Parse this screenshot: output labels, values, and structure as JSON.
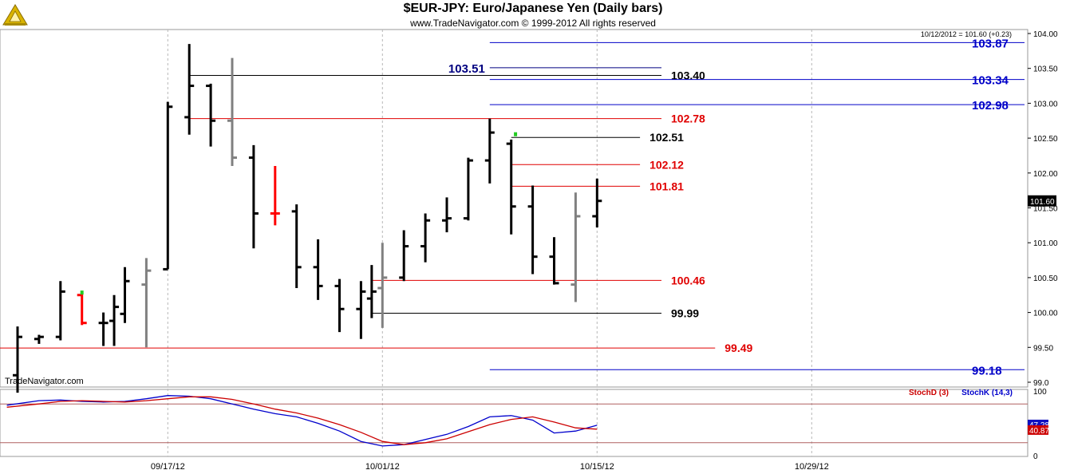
{
  "header": {
    "title": "$EUR-JPY:  Euro/Japanese Yen  (Daily bars)",
    "copyright": "www.TradeNavigator.com © 1999-2012 All rights reserved",
    "logo_icon": "trade-navigator-logo-icon"
  },
  "chart_data": {
    "type": "ohlc",
    "watermark": "TradeNavigator.com",
    "last_quote": "10/12/2012 = 101.60 (+0.23)",
    "last_price_label": "101.60",
    "x_ticks": [
      {
        "i": 7,
        "label": "09/17/12"
      },
      {
        "i": 17,
        "label": "10/01/12"
      },
      {
        "i": 27,
        "label": "10/15/12"
      },
      {
        "i": 37,
        "label": "10/29/12"
      }
    ],
    "y_ticks": [
      "99.0",
      "99.50",
      "100.00",
      "100.50",
      "101.00",
      "101.50",
      "102.00",
      "102.50",
      "103.00",
      "103.50",
      "104.00"
    ],
    "ylim": [
      99.0,
      104.0
    ],
    "bars": [
      {
        "i": 0,
        "o": 99.1,
        "h": 99.8,
        "l": 98.85,
        "c": 99.65,
        "color": "#000000"
      },
      {
        "i": 1,
        "o": 99.62,
        "h": 99.68,
        "l": 99.55,
        "c": 99.65,
        "color": "#000000"
      },
      {
        "i": 2,
        "o": 99.65,
        "h": 100.45,
        "l": 99.6,
        "c": 100.3,
        "color": "#000000"
      },
      {
        "i": 3,
        "o": 100.25,
        "h": 100.28,
        "l": 99.82,
        "c": 99.85,
        "color": "#ff0000"
      },
      {
        "i": 4,
        "o": 99.85,
        "h": 100.0,
        "l": 99.52,
        "c": 99.85,
        "color": "#000000"
      },
      {
        "i": 4.5,
        "o": 99.88,
        "h": 100.25,
        "l": 99.52,
        "c": 100.08,
        "color": "#000000"
      },
      {
        "i": 5,
        "o": 99.98,
        "h": 100.65,
        "l": 99.85,
        "c": 100.45,
        "color": "#000000"
      },
      {
        "i": 6,
        "o": 100.4,
        "h": 100.78,
        "l": 99.5,
        "c": 100.6,
        "color": "#808080"
      },
      {
        "i": 7,
        "o": 100.62,
        "h": 103.02,
        "l": 100.62,
        "c": 102.95,
        "color": "#000000"
      },
      {
        "i": 8,
        "o": 102.8,
        "h": 103.85,
        "l": 102.55,
        "c": 103.25,
        "color": "#000000"
      },
      {
        "i": 9,
        "o": 103.25,
        "h": 103.28,
        "l": 102.38,
        "c": 102.75,
        "color": "#000000"
      },
      {
        "i": 10,
        "o": 102.75,
        "h": 103.65,
        "l": 102.1,
        "c": 102.22,
        "color": "#808080"
      },
      {
        "i": 11,
        "o": 102.22,
        "h": 102.4,
        "l": 100.92,
        "c": 101.42,
        "color": "#000000"
      },
      {
        "i": 12,
        "o": 101.42,
        "h": 102.1,
        "l": 101.25,
        "c": 101.42,
        "color": "#ff0000"
      },
      {
        "i": 13,
        "o": 101.45,
        "h": 101.55,
        "l": 100.35,
        "c": 100.65,
        "color": "#000000"
      },
      {
        "i": 14,
        "o": 100.65,
        "h": 101.05,
        "l": 100.18,
        "c": 100.38,
        "color": "#000000"
      },
      {
        "i": 15,
        "o": 100.38,
        "h": 100.48,
        "l": 99.72,
        "c": 100.05,
        "color": "#000000"
      },
      {
        "i": 16,
        "o": 100.05,
        "h": 100.45,
        "l": 99.62,
        "c": 100.3,
        "color": "#000000"
      },
      {
        "i": 16.5,
        "o": 100.2,
        "h": 100.68,
        "l": 99.92,
        "c": 100.3,
        "color": "#000000"
      },
      {
        "i": 17,
        "o": 100.35,
        "h": 101.0,
        "l": 99.78,
        "c": 100.5,
        "color": "#808080"
      },
      {
        "i": 18,
        "o": 100.5,
        "h": 101.18,
        "l": 100.45,
        "c": 100.95,
        "color": "#000000"
      },
      {
        "i": 19,
        "o": 100.95,
        "h": 101.42,
        "l": 100.72,
        "c": 101.32,
        "color": "#000000"
      },
      {
        "i": 20,
        "o": 101.32,
        "h": 101.65,
        "l": 101.15,
        "c": 101.35,
        "color": "#000000"
      },
      {
        "i": 21,
        "o": 101.35,
        "h": 102.22,
        "l": 101.32,
        "c": 102.18,
        "color": "#000000"
      },
      {
        "i": 22,
        "o": 102.18,
        "h": 102.78,
        "l": 101.85,
        "c": 102.58,
        "color": "#000000"
      },
      {
        "i": 23,
        "o": 102.42,
        "h": 102.48,
        "l": 101.12,
        "c": 101.52,
        "color": "#000000"
      },
      {
        "i": 24,
        "o": 101.52,
        "h": 101.82,
        "l": 100.55,
        "c": 100.8,
        "color": "#000000"
      },
      {
        "i": 25,
        "o": 100.8,
        "h": 101.08,
        "l": 100.4,
        "c": 100.42,
        "color": "#000000"
      },
      {
        "i": 26,
        "o": 100.4,
        "h": 101.72,
        "l": 100.15,
        "c": 101.38,
        "color": "#808080"
      },
      {
        "i": 27,
        "o": 101.38,
        "h": 101.92,
        "l": 101.22,
        "c": 101.6,
        "color": "#000000"
      }
    ],
    "green_dots": [
      {
        "i": 3,
        "v": 100.28
      },
      {
        "i": 23.2,
        "v": 102.55
      }
    ],
    "levels": [
      {
        "value": 103.87,
        "label": "103.87",
        "color": "#0000c8",
        "from": 22.0,
        "to": 47.0,
        "label_pos": "right"
      },
      {
        "value": 103.51,
        "label": "103.51",
        "color": "#000080",
        "from": 22.0,
        "to": 30.0,
        "label_pos": "left"
      },
      {
        "value": 103.4,
        "label": "103.40",
        "color": "#000000",
        "from": 8.0,
        "to": 30.0,
        "label_pos": "right-end"
      },
      {
        "value": 103.34,
        "label": "103.34",
        "color": "#0000c8",
        "from": 22.0,
        "to": 47.0,
        "label_pos": "right"
      },
      {
        "value": 102.98,
        "label": "102.98",
        "color": "#0000c8",
        "from": 22.0,
        "to": 47.0,
        "label_pos": "right"
      },
      {
        "value": 102.78,
        "label": "102.78",
        "color": "#e00000",
        "from": 8.0,
        "to": 30.0,
        "label_pos": "right-end"
      },
      {
        "value": 102.51,
        "label": "102.51",
        "color": "#000000",
        "from": 23.0,
        "to": 29.0,
        "label_pos": "right-end"
      },
      {
        "value": 102.12,
        "label": "102.12",
        "color": "#e00000",
        "from": 23.0,
        "to": 29.0,
        "label_pos": "right-end"
      },
      {
        "value": 101.81,
        "label": "101.81",
        "color": "#e00000",
        "from": 23.0,
        "to": 29.0,
        "label_pos": "right-end"
      },
      {
        "value": 100.46,
        "label": "100.46",
        "color": "#e00000",
        "from": 16.5,
        "to": 30.0,
        "label_pos": "right-end"
      },
      {
        "value": 99.99,
        "label": "99.99",
        "color": "#000000",
        "from": 16.5,
        "to": 30.0,
        "label_pos": "right-end"
      },
      {
        "value": 99.49,
        "label": "99.49",
        "color": "#e00000",
        "from": -1.0,
        "to": 32.5,
        "label_pos": "right-end"
      },
      {
        "value": 99.18,
        "label": "99.18",
        "color": "#0000c8",
        "from": 22.0,
        "to": 47.0,
        "label_pos": "right"
      }
    ],
    "indicator": {
      "legend": [
        {
          "name": "StochD (3)",
          "color": "#cc0000"
        },
        {
          "name": "StochK (14,3)",
          "color": "#0000cc"
        }
      ],
      "y_ticks": [
        "0",
        "100"
      ],
      "ylim": [
        0,
        100
      ],
      "ref_lines": [
        80,
        20
      ],
      "last_k_label": "47.28",
      "last_d_label": "40.87",
      "series": [
        {
          "name": "StochK (14,3)",
          "color": "#0000cc",
          "x": [
            -0.5,
            1,
            2,
            3,
            4,
            5,
            6,
            7,
            8,
            9,
            10,
            11,
            12,
            13,
            14,
            15,
            16,
            17,
            18,
            19,
            20,
            21,
            22,
            23,
            24,
            25,
            26,
            27
          ],
          "values": [
            78,
            85,
            86,
            84,
            83,
            84,
            88,
            93,
            92,
            88,
            80,
            72,
            65,
            60,
            50,
            38,
            22,
            15,
            17,
            25,
            33,
            45,
            60,
            62,
            55,
            35,
            38,
            47
          ]
        },
        {
          "name": "StochD (3)",
          "color": "#cc0000",
          "x": [
            -0.5,
            1,
            2,
            3,
            4,
            5,
            6,
            7,
            8,
            9,
            10,
            11,
            12,
            13,
            14,
            15,
            16,
            17,
            18,
            19,
            20,
            21,
            22,
            23,
            24,
            25,
            26,
            27
          ],
          "values": [
            75,
            80,
            84,
            85,
            84,
            83,
            85,
            88,
            91,
            91,
            87,
            80,
            72,
            66,
            58,
            48,
            36,
            22,
            17,
            20,
            26,
            37,
            48,
            56,
            60,
            52,
            43,
            41
          ]
        }
      ]
    }
  }
}
